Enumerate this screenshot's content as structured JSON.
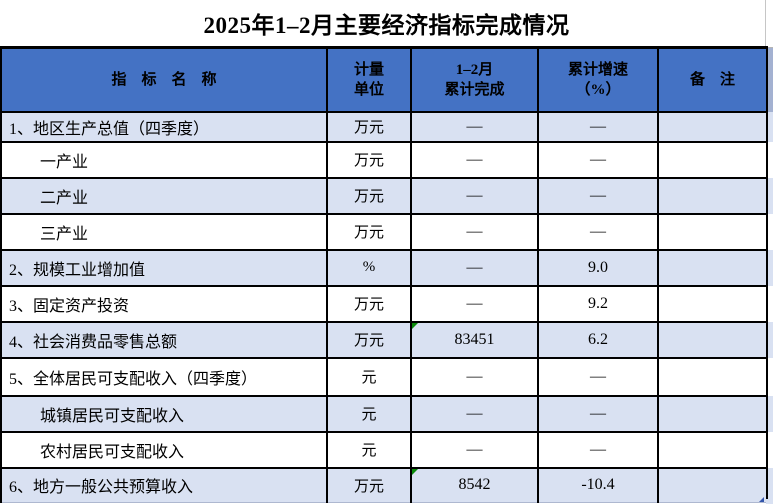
{
  "title": "2025年1–2月主要经济指标完成情况",
  "colors": {
    "header_bg": "#4472C4",
    "row_stripe": "#D9E1F2",
    "row_plain": "#FFFFFF",
    "border": "#000000",
    "error_indicator_green": "#0B8A0B",
    "corner_marker_blue": "#3355AA"
  },
  "table": {
    "columns": [
      {
        "label": "指　标　名　称"
      },
      {
        "label": "计量\n单位"
      },
      {
        "label": "1–2月\n累计完成"
      },
      {
        "label": "累计增速\n（%）"
      },
      {
        "label": "备　注"
      }
    ],
    "rows": [
      {
        "label": "1、地区生产总值（四季度）",
        "unit": "万元",
        "completed": "—",
        "growth": "—",
        "remark": ""
      },
      {
        "label": "一产业",
        "unit": "万元",
        "completed": "—",
        "growth": "—",
        "remark": ""
      },
      {
        "label": "二产业",
        "unit": "万元",
        "completed": "—",
        "growth": "—",
        "remark": ""
      },
      {
        "label": "三产业",
        "unit": "万元",
        "completed": "—",
        "growth": "—",
        "remark": ""
      },
      {
        "label": "2、规模工业增加值",
        "unit": "%",
        "completed": "—",
        "growth": "9.0",
        "remark": ""
      },
      {
        "label": "3、固定资产投资",
        "unit": "万元",
        "completed": "—",
        "growth": "9.2",
        "remark": ""
      },
      {
        "label": "4、社会消费品零售总额",
        "unit": "万元",
        "completed": "83451",
        "growth": "6.2",
        "remark": ""
      },
      {
        "label": "5、全体居民可支配收入（四季度）",
        "unit": "元",
        "completed": "—",
        "growth": "—",
        "remark": ""
      },
      {
        "label": "城镇居民可支配收入",
        "unit": "元",
        "completed": "—",
        "growth": "—",
        "remark": ""
      },
      {
        "label": "农村居民可支配收入",
        "unit": "元",
        "completed": "—",
        "growth": "—",
        "remark": ""
      },
      {
        "label": "6、地方一般公共预算收入",
        "unit": "万元",
        "completed": "8542",
        "growth": "-10.4",
        "remark": ""
      }
    ]
  }
}
